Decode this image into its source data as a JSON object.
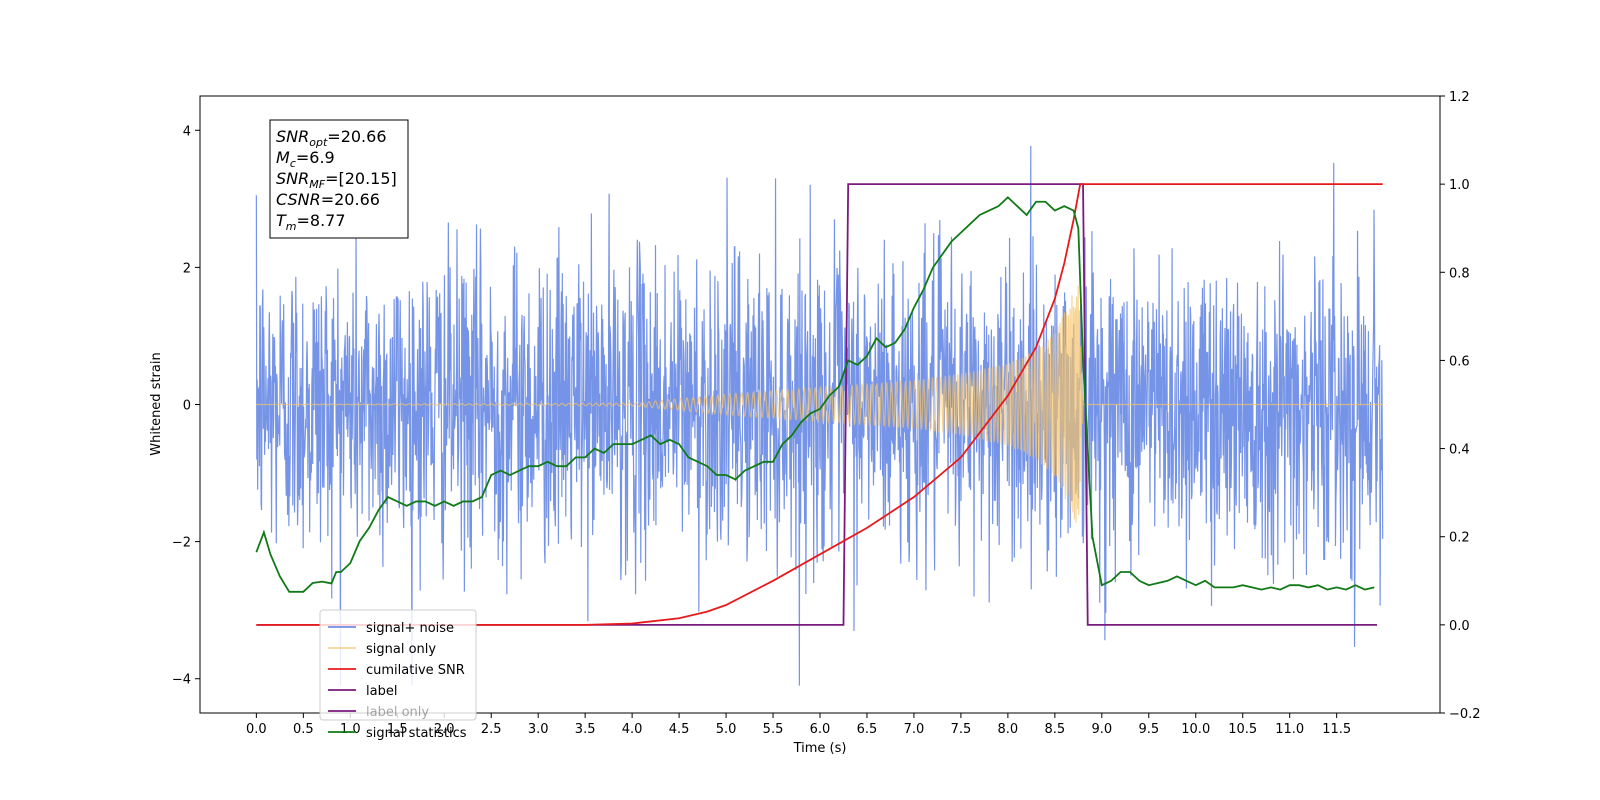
{
  "chart_data": {
    "type": "line",
    "xlabel": "Time (s)",
    "ylabel": "Whitened strain",
    "x_range": [
      -0.6,
      12.6
    ],
    "y_left_range": [
      -4.5,
      4.5
    ],
    "y_right_range": [
      -0.2,
      1.2
    ],
    "x_ticks": [
      0.0,
      0.5,
      1.0,
      1.5,
      2.0,
      2.5,
      3.0,
      3.5,
      4.0,
      4.5,
      5.0,
      5.5,
      6.0,
      6.5,
      7.0,
      7.5,
      8.0,
      8.5,
      9.0,
      9.5,
      10.0,
      10.5,
      11.0,
      11.5
    ],
    "x_tick_labels": [
      "0.0",
      "0.5",
      "1.0",
      "1.5",
      "2.0",
      "2.5",
      "3.0",
      "3.5",
      "4.0",
      "4.5",
      "5.0",
      "5.5",
      "6.0",
      "6.5",
      "7.0",
      "7.5",
      "8.0",
      "8.5",
      "9.0",
      "9.5",
      "10.0",
      "10.5",
      "11.0",
      "11.5"
    ],
    "y_left_ticks": [
      -4,
      -2,
      0,
      2,
      4
    ],
    "y_left_tick_labels": [
      "−4",
      "−2",
      "0",
      "2",
      "4"
    ],
    "y_right_ticks": [
      -0.2,
      0.0,
      0.2,
      0.4,
      0.6,
      0.8,
      1.0,
      1.2
    ],
    "y_right_tick_labels": [
      "−0.2",
      "0.0",
      "0.2",
      "0.4",
      "0.6",
      "0.8",
      "1.0",
      "1.2"
    ],
    "grid": false,
    "legend_position": "lower-left",
    "annotation": {
      "lines": [
        {
          "main": "SNR",
          "sub": "opt",
          "value": "=20.66"
        },
        {
          "main": "M",
          "sub": "c",
          "value": "=6.9"
        },
        {
          "main": "SNR",
          "sub": "MF",
          "value": "=[20.15]"
        },
        {
          "main": "CSNR",
          "sub": "",
          "value": "=20.66"
        },
        {
          "main": "T",
          "sub": "m",
          "value": "=8.77"
        }
      ]
    },
    "series": [
      {
        "name": "signal+ noise",
        "axis": "left",
        "color": "#6f8ee6",
        "kind": "noise",
        "x_start": 0.0,
        "x_end": 11.99,
        "noise_sigma": 1.1,
        "y_max_observed": 4.1,
        "y_min_observed": -4.1
      },
      {
        "name": "signal only",
        "axis": "left",
        "color": "#f5c36a",
        "kind": "chirp",
        "x_start": 0.0,
        "x_end": 11.99,
        "merger_time": 8.77,
        "envelope": {
          "x": [
            0.0,
            4.0,
            5.0,
            6.0,
            7.0,
            7.5,
            8.0,
            8.3,
            8.5,
            8.65,
            8.75,
            8.8,
            12.0
          ],
          "y": [
            0.0,
            0.02,
            0.15,
            0.25,
            0.35,
            0.45,
            0.6,
            0.8,
            1.05,
            1.5,
            1.8,
            0.0,
            0.0
          ]
        }
      },
      {
        "name": "cumilative SNR",
        "axis": "right",
        "color": "#e8191b",
        "x": [
          0.0,
          3.5,
          4.0,
          4.5,
          4.8,
          5.0,
          5.5,
          6.0,
          6.5,
          7.0,
          7.5,
          8.0,
          8.3,
          8.5,
          8.6,
          8.7,
          8.77,
          8.78,
          11.99
        ],
        "y": [
          0.0,
          0.0,
          0.003,
          0.015,
          0.03,
          0.045,
          0.1,
          0.16,
          0.22,
          0.29,
          0.38,
          0.52,
          0.63,
          0.74,
          0.82,
          0.92,
          1.0,
          1.0,
          1.0
        ]
      },
      {
        "name": "label",
        "axis": "right",
        "color": "#7a1a7e",
        "x": [
          0.0,
          6.25,
          6.3,
          8.8,
          8.85,
          11.93
        ],
        "y": [
          0.0,
          0.0,
          1.0,
          1.0,
          0.0,
          0.0
        ]
      },
      {
        "name": "label only",
        "axis": "right",
        "color": "#7a1a7e",
        "hidden": true,
        "x": [],
        "y": []
      },
      {
        "name": "signal statistics",
        "axis": "right",
        "color": "#117a17",
        "x": [
          0.0,
          0.08,
          0.15,
          0.25,
          0.35,
          0.5,
          0.6,
          0.7,
          0.8,
          0.85,
          0.9,
          1.0,
          1.1,
          1.2,
          1.3,
          1.4,
          1.5,
          1.6,
          1.7,
          1.8,
          1.9,
          2.0,
          2.1,
          2.2,
          2.3,
          2.4,
          2.5,
          2.6,
          2.7,
          2.8,
          2.9,
          3.0,
          3.1,
          3.2,
          3.3,
          3.4,
          3.5,
          3.6,
          3.7,
          3.8,
          3.9,
          4.0,
          4.1,
          4.2,
          4.3,
          4.4,
          4.5,
          4.6,
          4.7,
          4.8,
          4.9,
          5.0,
          5.1,
          5.2,
          5.3,
          5.4,
          5.5,
          5.6,
          5.7,
          5.8,
          5.9,
          6.0,
          6.1,
          6.2,
          6.3,
          6.4,
          6.5,
          6.6,
          6.7,
          6.8,
          6.9,
          7.0,
          7.1,
          7.2,
          7.3,
          7.4,
          7.5,
          7.6,
          7.7,
          7.8,
          7.9,
          8.0,
          8.1,
          8.2,
          8.3,
          8.4,
          8.5,
          8.6,
          8.7,
          8.75,
          8.8,
          8.9,
          9.0,
          9.1,
          9.2,
          9.3,
          9.4,
          9.5,
          9.6,
          9.7,
          9.8,
          9.9,
          10.0,
          10.1,
          10.2,
          10.3,
          10.4,
          10.5,
          10.6,
          10.7,
          10.8,
          10.9,
          11.0,
          11.1,
          11.2,
          11.3,
          11.4,
          11.5,
          11.6,
          11.7,
          11.8,
          11.9
        ],
        "y": [
          0.165,
          0.21,
          0.16,
          0.11,
          0.075,
          0.075,
          0.095,
          0.098,
          0.094,
          0.12,
          0.12,
          0.14,
          0.19,
          0.22,
          0.26,
          0.29,
          0.28,
          0.27,
          0.28,
          0.28,
          0.27,
          0.28,
          0.27,
          0.28,
          0.28,
          0.29,
          0.34,
          0.35,
          0.34,
          0.35,
          0.36,
          0.36,
          0.37,
          0.36,
          0.36,
          0.38,
          0.38,
          0.4,
          0.39,
          0.41,
          0.41,
          0.41,
          0.42,
          0.43,
          0.41,
          0.42,
          0.41,
          0.38,
          0.37,
          0.36,
          0.34,
          0.34,
          0.33,
          0.35,
          0.36,
          0.37,
          0.37,
          0.41,
          0.43,
          0.46,
          0.48,
          0.49,
          0.52,
          0.54,
          0.6,
          0.59,
          0.61,
          0.65,
          0.63,
          0.64,
          0.67,
          0.72,
          0.76,
          0.81,
          0.84,
          0.87,
          0.89,
          0.91,
          0.93,
          0.94,
          0.95,
          0.97,
          0.95,
          0.93,
          0.96,
          0.96,
          0.94,
          0.95,
          0.94,
          0.9,
          0.6,
          0.2,
          0.09,
          0.1,
          0.12,
          0.12,
          0.1,
          0.09,
          0.095,
          0.1,
          0.11,
          0.1,
          0.09,
          0.1,
          0.085,
          0.085,
          0.085,
          0.09,
          0.085,
          0.08,
          0.085,
          0.08,
          0.09,
          0.09,
          0.085,
          0.09,
          0.08,
          0.085,
          0.08,
          0.09,
          0.08,
          0.085
        ]
      }
    ]
  }
}
